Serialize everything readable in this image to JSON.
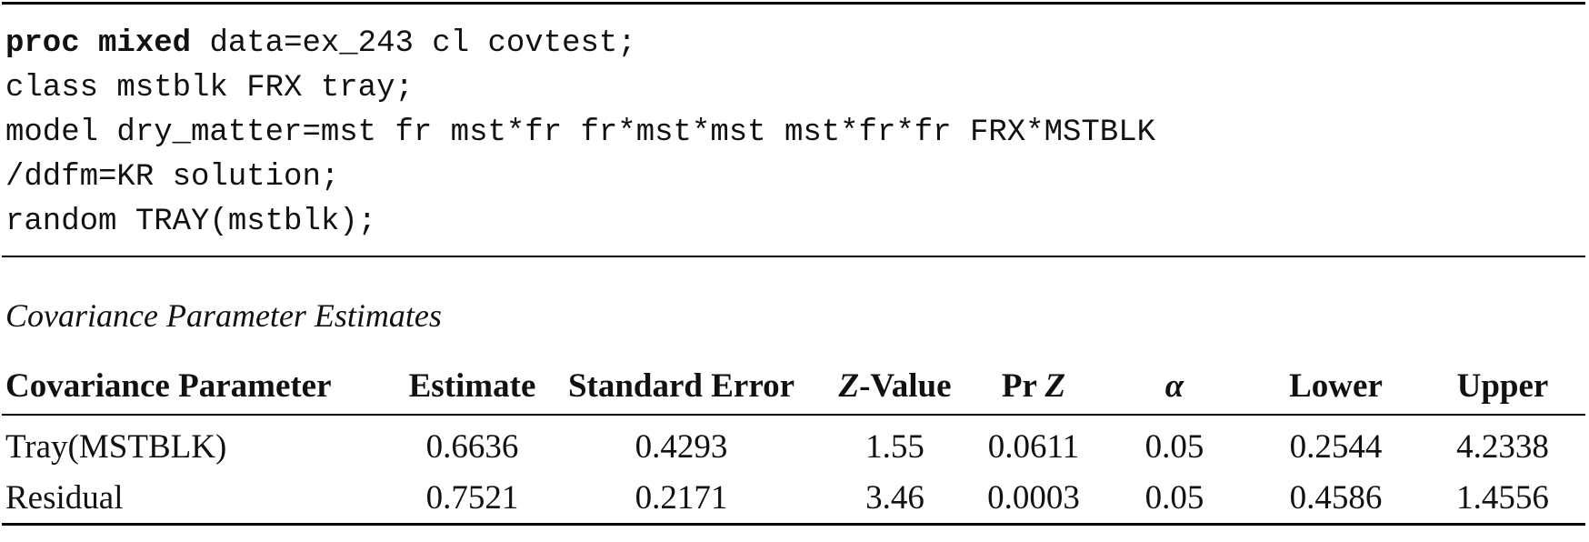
{
  "code": {
    "line1_kw": "proc mixed",
    "line1_rest": " data=ex_243 cl covtest;",
    "line2": "class mstblk FRX tray;",
    "line3": "model dry_matter=mst fr mst*fr fr*mst*mst mst*fr*fr FRX*MSTBLK",
    "line4": "/ddfm=KR solution;",
    "line5": "random TRAY(mstblk);"
  },
  "table": {
    "caption": "Covariance Parameter Estimates",
    "headers": {
      "param": "Covariance Parameter",
      "estimate": "Estimate",
      "std_error": "Standard Error",
      "z_italic": "Z",
      "z_rest": "-Value",
      "pr_prefix": "Pr ",
      "pr_italic": "Z",
      "alpha": "α",
      "lower": "Lower",
      "upper": "Upper"
    },
    "rows": [
      {
        "param": "Tray(MSTBLK)",
        "estimate": "0.6636",
        "std_error": "0.4293",
        "z_value": "1.55",
        "pr_z": "0.0611",
        "alpha": "0.05",
        "lower": "0.2544",
        "upper": "4.2338"
      },
      {
        "param": "Residual",
        "estimate": "0.7521",
        "std_error": "0.2171",
        "z_value": "3.46",
        "pr_z": "0.0003",
        "alpha": "0.05",
        "lower": "0.4586",
        "upper": "1.4556"
      }
    ]
  }
}
